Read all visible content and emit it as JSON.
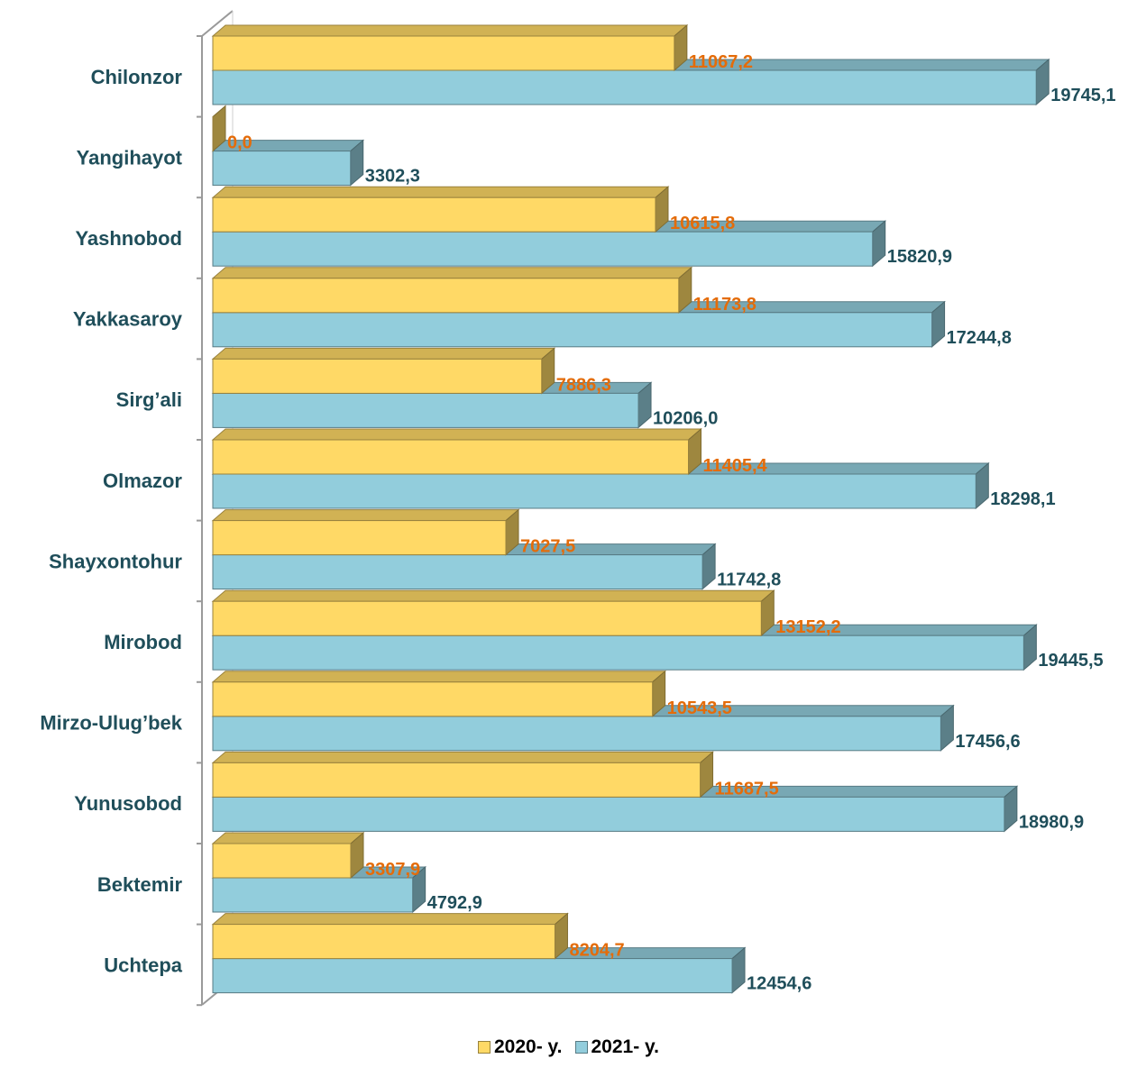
{
  "chart_data": {
    "type": "bar",
    "orientation": "horizontal",
    "three_d": true,
    "categories": [
      "Chilonzor",
      "Yangihayot",
      "Yashnobod",
      "Yakkasaroy",
      "Sirg’ali",
      "Olmazor",
      "Shayxontohur",
      "Mirobod",
      "Mirzo-Ulug’bek",
      "Yunusobod",
      "Bektemir",
      "Uchtepa"
    ],
    "series": [
      {
        "name": "2020- y.",
        "color": "#ffd966",
        "label_color": "#e46c0a",
        "values": [
          11067.2,
          0.0,
          10615.8,
          11173.8,
          7886.3,
          11405.4,
          7027.5,
          13152.2,
          10543.5,
          11687.5,
          3307.9,
          8204.7
        ],
        "labels": [
          "11067,2",
          "0,0",
          "10615,8",
          "11173,8",
          "7886,3",
          "11405,4",
          "7027,5",
          "13152,2",
          "10543,5",
          "11687,5",
          "3307,9",
          "8204,7"
        ]
      },
      {
        "name": "2021- y.",
        "color": "#92cddc",
        "label_color": "#1f4e5a",
        "values": [
          19745.1,
          3302.3,
          15820.9,
          17244.8,
          10206.0,
          18298.1,
          11742.8,
          19445.5,
          17456.6,
          18980.9,
          4792.9,
          12454.6
        ],
        "labels": [
          "19745,1",
          "3302,3",
          "15820,9",
          "17244,8",
          "10206,0",
          "18298,1",
          "11742,8",
          "19445,5",
          "17456,6",
          "18980,9",
          "4792,9",
          "12454,6"
        ]
      }
    ],
    "xlim": [
      0,
      20000
    ],
    "grid": false,
    "legend": "bottom-center"
  }
}
